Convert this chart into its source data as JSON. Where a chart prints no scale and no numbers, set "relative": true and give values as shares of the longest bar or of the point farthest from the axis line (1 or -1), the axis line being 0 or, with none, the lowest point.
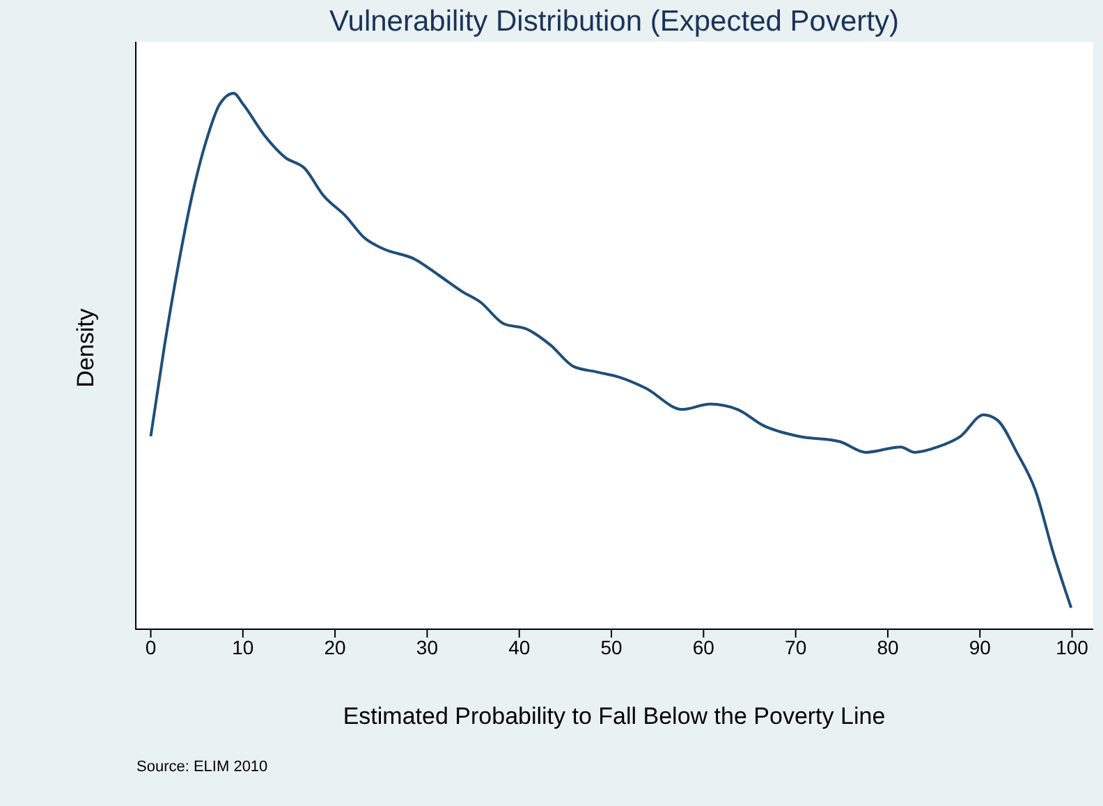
{
  "chart_data": {
    "type": "line",
    "title": "Vulnerability Distribution (Expected Poverty)",
    "xlabel": "Estimated Probability to Fall Below the Poverty Line",
    "ylabel": "Density",
    "annotations": [
      "Source: ELIM 2010"
    ],
    "relative": true,
    "xlim": [
      -1.7,
      102.3
    ],
    "xticks": [
      0,
      10,
      20,
      30,
      40,
      50,
      60,
      70,
      80,
      90,
      100
    ],
    "marker": "none",
    "line_style": "solid",
    "series": [
      {
        "color": "#1f4e79",
        "x": [
          0,
          1.5,
          3,
          4.5,
          6,
          7.5,
          9,
          10,
          12.4,
          14.6,
          16.7,
          18.7,
          21.2,
          23.2,
          25.2,
          28.7,
          31.3,
          33.8,
          35.8,
          38.3,
          40.8,
          43.4,
          45.9,
          48.4,
          50.9,
          53.7,
          57.7,
          60.7,
          63.7,
          66.5,
          70.3,
          74.8,
          77.6,
          81.4,
          82.9,
          85.4,
          87.9,
          90.4,
          91.9,
          94,
          96,
          98,
          99.9
        ],
        "values": [
          0.36,
          0.53,
          0.68,
          0.81,
          0.91,
          0.98,
          1,
          0.98,
          0.92,
          0.88,
          0.86,
          0.81,
          0.77,
          0.73,
          0.71,
          0.69,
          0.66,
          0.63,
          0.61,
          0.57,
          0.56,
          0.53,
          0.49,
          0.48,
          0.47,
          0.45,
          0.41,
          0.42,
          0.41,
          0.38,
          0.36,
          0.35,
          0.33,
          0.34,
          0.33,
          0.34,
          0.36,
          0.4,
          0.39,
          0.33,
          0.26,
          0.14,
          0.04
        ]
      }
    ]
  }
}
